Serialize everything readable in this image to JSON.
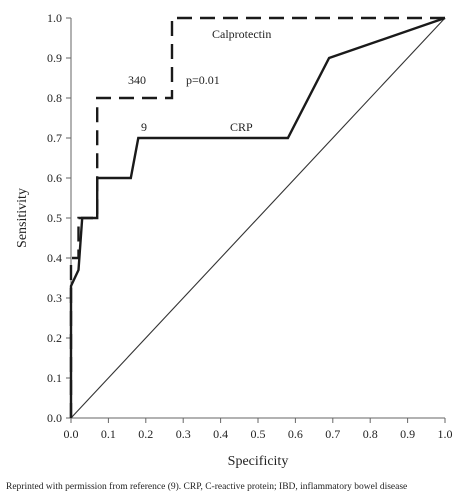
{
  "chart_data": {
    "type": "line",
    "xlabel": "Specificity",
    "ylabel": "Sensitivity",
    "xlim": [
      0,
      1
    ],
    "ylim": [
      0,
      1
    ],
    "x_ticks": [
      "0.0",
      "0.1",
      "0.2",
      "0.3",
      "0.4",
      "0.5",
      "0.6",
      "0.7",
      "0.8",
      "0.9",
      "1.0"
    ],
    "y_ticks": [
      "0.0",
      "0.1",
      "0.2",
      "0.3",
      "0.4",
      "0.5",
      "0.6",
      "0.7",
      "0.8",
      "0.9",
      "1.0"
    ],
    "series": [
      {
        "name": "Calprotectin",
        "style": "dashed",
        "x": [
          0,
          0,
          0.02,
          0.02,
          0.07,
          0.07,
          0.1,
          0.1,
          0.27,
          0.27,
          1.0
        ],
        "y": [
          0,
          0.4,
          0.4,
          0.5,
          0.5,
          0.8,
          0.8,
          0.8,
          0.8,
          1.0,
          1.0
        ]
      },
      {
        "name": "CRP",
        "style": "solid",
        "x": [
          0,
          0,
          0.02,
          0.03,
          0.07,
          0.07,
          0.16,
          0.18,
          0.58,
          0.69,
          1.0
        ],
        "y": [
          0,
          0.33,
          0.37,
          0.5,
          0.5,
          0.6,
          0.6,
          0.7,
          0.7,
          0.9,
          1.0
        ]
      },
      {
        "style": "reference",
        "x": [
          0,
          1
        ],
        "y": [
          0,
          1
        ]
      }
    ],
    "annotations": [
      "340",
      "p=0.01",
      "9"
    ],
    "legend": "inline labels",
    "grid": false
  },
  "caption": "Reprinted with permission from reference (9). CRP, C-reactive protein; IBD, inflammatory bowel disease"
}
